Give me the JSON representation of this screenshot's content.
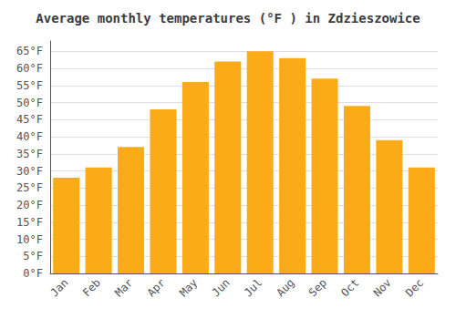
{
  "chart_data": {
    "type": "bar",
    "title": "Average monthly temperatures (°F ) in Zdzieszowice",
    "categories": [
      "Jan",
      "Feb",
      "Mar",
      "Apr",
      "May",
      "Jun",
      "Jul",
      "Aug",
      "Sep",
      "Oct",
      "Nov",
      "Dec"
    ],
    "values": [
      28,
      31,
      37,
      48,
      56,
      62,
      65,
      63,
      57,
      49,
      39,
      31
    ],
    "color": "#FBAB18",
    "ylim": [
      0,
      68
    ],
    "yticks": [
      {
        "value": 0,
        "label": "0°F"
      },
      {
        "value": 5,
        "label": "5°F"
      },
      {
        "value": 10,
        "label": "10°F"
      },
      {
        "value": 15,
        "label": "15°F"
      },
      {
        "value": 20,
        "label": "20°F"
      },
      {
        "value": 25,
        "label": "25°F"
      },
      {
        "value": 30,
        "label": "30°F"
      },
      {
        "value": 35,
        "label": "35°F"
      },
      {
        "value": 40,
        "label": "40°F"
      },
      {
        "value": 45,
        "label": "45°F"
      },
      {
        "value": 50,
        "label": "50°F"
      },
      {
        "value": 55,
        "label": "55°F"
      },
      {
        "value": 60,
        "label": "60°F"
      },
      {
        "value": 65,
        "label": "65°F"
      }
    ],
    "grid": true
  }
}
